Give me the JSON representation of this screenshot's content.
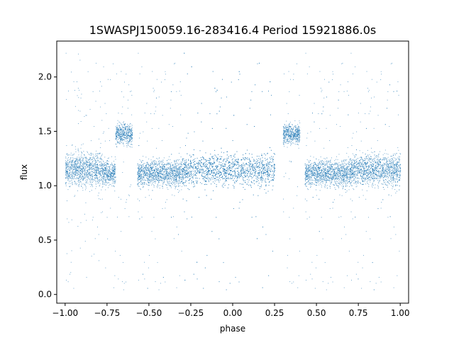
{
  "chart_data": {
    "type": "scatter",
    "title": "1SWASPJ150059.16-283416.4 Period 15921886.0s",
    "xlabel": "phase",
    "ylabel": "flux",
    "xlim": [
      -1.05,
      1.05
    ],
    "ylim": [
      -0.08,
      2.33
    ],
    "x_ticks": [
      -1.0,
      -0.75,
      -0.5,
      -0.25,
      0.0,
      0.25,
      0.5,
      0.75,
      1.0
    ],
    "x_tick_labels": [
      "−1.00",
      "−0.75",
      "−0.50",
      "−0.25",
      "0.00",
      "0.25",
      "0.50",
      "0.75",
      "1.00"
    ],
    "y_ticks": [
      0.0,
      0.5,
      1.0,
      1.5,
      2.0
    ],
    "y_tick_labels": [
      "0.0",
      "0.5",
      "1.0",
      "1.5",
      "2.0"
    ],
    "grid": false,
    "marker_color": "#1f77b4",
    "series": [
      {
        "description_of_distribution": "folded light curve, dense band around flux 1.0-1.3",
        "segments": [
          {
            "phase": [
              -1.0,
              -0.78
            ],
            "flux_center": 1.15,
            "flux_spread": 0.12
          },
          {
            "phase": [
              -0.78,
              -0.7
            ],
            "flux_center": 1.12,
            "flux_spread": 0.1
          },
          {
            "phase": [
              -0.7,
              -0.6
            ],
            "flux_center": 1.48,
            "flux_spread": 0.08
          },
          {
            "phase": [
              -0.57,
              -0.3
            ],
            "flux_center": 1.12,
            "flux_spread": 0.1
          },
          {
            "phase": [
              -0.3,
              0.25
            ],
            "flux_center": 1.15,
            "flux_spread": 0.12
          },
          {
            "phase": [
              0.3,
              0.4
            ],
            "flux_center": 1.48,
            "flux_spread": 0.08
          },
          {
            "phase": [
              0.43,
              0.7
            ],
            "flux_center": 1.12,
            "flux_spread": 0.1
          },
          {
            "phase": [
              0.7,
              1.0
            ],
            "flux_center": 1.15,
            "flux_spread": 0.12
          }
        ],
        "gaps": [
          [
            -0.6,
            -0.57
          ],
          [
            0.25,
            0.3
          ],
          [
            0.4,
            0.43
          ]
        ],
        "outlier_range": [
          0.02,
          2.27
        ]
      }
    ]
  }
}
